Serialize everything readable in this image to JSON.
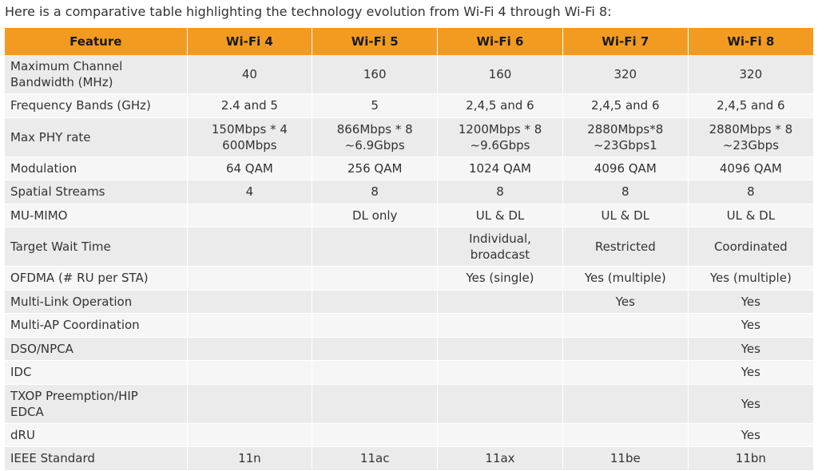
{
  "intro": "Here is a comparative table highlighting the technology evolution from Wi-Fi 4 through Wi-Fi 8:",
  "colors": {
    "header_bg": "#f39b21",
    "row_odd": "#ebebeb",
    "row_even": "#f6f6f6"
  },
  "table": {
    "headers": [
      "Feature",
      "Wi-Fi 4",
      "Wi-Fi 5",
      "Wi-Fi 6",
      "Wi-Fi 7",
      "Wi-Fi 8"
    ],
    "rows": [
      {
        "feature": [
          "Maximum Channel",
          "Bandwidth (MHz)"
        ],
        "cells": [
          [
            "40"
          ],
          [
            "160"
          ],
          [
            "160"
          ],
          [
            "320"
          ],
          [
            "320"
          ]
        ]
      },
      {
        "feature": [
          "Frequency Bands (GHz)"
        ],
        "cells": [
          [
            "2.4 and 5"
          ],
          [
            "5"
          ],
          [
            "2,4,5 and 6"
          ],
          [
            "2,4,5 and 6"
          ],
          [
            "2,4,5 and 6"
          ]
        ]
      },
      {
        "feature": [
          "Max PHY rate"
        ],
        "cells": [
          [
            "150Mbps * 4",
            "600Mbps"
          ],
          [
            "866Mbps * 8",
            "~6.9Gbps"
          ],
          [
            "1200Mbps * 8",
            "~9.6Gbps"
          ],
          [
            "2880Mbps*8",
            "~23Gbps1"
          ],
          [
            "2880Mbps * 8",
            "~23Gbps"
          ]
        ]
      },
      {
        "feature": [
          "Modulation"
        ],
        "cells": [
          [
            "64 QAM"
          ],
          [
            "256 QAM"
          ],
          [
            "1024 QAM"
          ],
          [
            "4096 QAM"
          ],
          [
            "4096 QAM"
          ]
        ]
      },
      {
        "feature": [
          "Spatial Streams"
        ],
        "cells": [
          [
            "4"
          ],
          [
            "8"
          ],
          [
            "8"
          ],
          [
            "8"
          ],
          [
            "8"
          ]
        ]
      },
      {
        "feature": [
          "MU-MIMO"
        ],
        "cells": [
          [
            ""
          ],
          [
            "DL only"
          ],
          [
            "UL & DL"
          ],
          [
            "UL & DL"
          ],
          [
            "UL & DL"
          ]
        ]
      },
      {
        "feature": [
          "Target Wait Time"
        ],
        "cells": [
          [
            ""
          ],
          [
            ""
          ],
          [
            "Individual,",
            "broadcast"
          ],
          [
            "Restricted"
          ],
          [
            "Coordinated"
          ]
        ]
      },
      {
        "feature": [
          "OFDMA (# RU per STA)"
        ],
        "cells": [
          [
            ""
          ],
          [
            ""
          ],
          [
            "Yes (single)"
          ],
          [
            "Yes (multiple)"
          ],
          [
            "Yes (multiple)"
          ]
        ]
      },
      {
        "feature": [
          "Multi-Link Operation"
        ],
        "cells": [
          [
            ""
          ],
          [
            ""
          ],
          [
            ""
          ],
          [
            "Yes"
          ],
          [
            "Yes"
          ]
        ]
      },
      {
        "feature": [
          "Multi-AP Coordination"
        ],
        "cells": [
          [
            ""
          ],
          [
            ""
          ],
          [
            ""
          ],
          [
            ""
          ],
          [
            "Yes"
          ]
        ]
      },
      {
        "feature": [
          "DSO/NPCA"
        ],
        "cells": [
          [
            ""
          ],
          [
            ""
          ],
          [
            ""
          ],
          [
            ""
          ],
          [
            "Yes"
          ]
        ]
      },
      {
        "feature": [
          "IDC"
        ],
        "cells": [
          [
            ""
          ],
          [
            ""
          ],
          [
            ""
          ],
          [
            ""
          ],
          [
            "Yes"
          ]
        ]
      },
      {
        "feature": [
          "TXOP Preemption/HIP",
          "EDCA"
        ],
        "cells": [
          [
            ""
          ],
          [
            ""
          ],
          [
            ""
          ],
          [
            ""
          ],
          [
            "Yes"
          ]
        ]
      },
      {
        "feature": [
          "dRU"
        ],
        "cells": [
          [
            ""
          ],
          [
            ""
          ],
          [
            ""
          ],
          [
            ""
          ],
          [
            "Yes"
          ]
        ]
      },
      {
        "feature": [
          "IEEE Standard"
        ],
        "cells": [
          [
            "11n"
          ],
          [
            "11ac"
          ],
          [
            "11ax"
          ],
          [
            "11be"
          ],
          [
            "11bn"
          ]
        ]
      }
    ]
  }
}
